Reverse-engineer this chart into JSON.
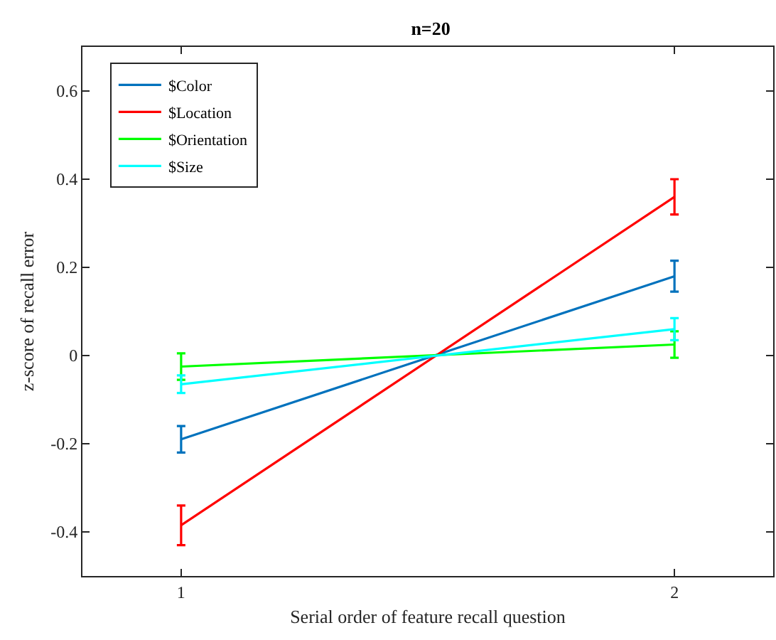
{
  "chart_data": {
    "type": "line",
    "title": "n=20",
    "xlabel": "Serial order of feature recall question",
    "ylabel": "z-score of recall error",
    "x": [
      1,
      2
    ],
    "series": [
      {
        "name": "$Color",
        "color": "#0072bd",
        "values": [
          -0.19,
          0.18
        ],
        "errors": [
          0.03,
          0.035
        ]
      },
      {
        "name": "$Location",
        "color": "#ff0000",
        "values": [
          -0.385,
          0.36
        ],
        "errors": [
          0.045,
          0.04
        ]
      },
      {
        "name": "$Orientation",
        "color": "#00ff00",
        "values": [
          -0.025,
          0.025
        ],
        "errors": [
          0.03,
          0.03
        ]
      },
      {
        "name": "$Size",
        "color": "#00ffff",
        "values": [
          -0.065,
          0.06
        ],
        "errors": [
          0.02,
          0.025
        ]
      }
    ],
    "xlim": [
      0.8,
      2.2
    ],
    "xticks": [
      1,
      2
    ],
    "ylim": [
      -0.5,
      0.7
    ],
    "yticks": [
      -0.4,
      -0.2,
      0,
      0.2,
      0.4,
      0.6
    ],
    "grid": false,
    "legend": "top left",
    "marker": "none",
    "line_style": "solid"
  }
}
